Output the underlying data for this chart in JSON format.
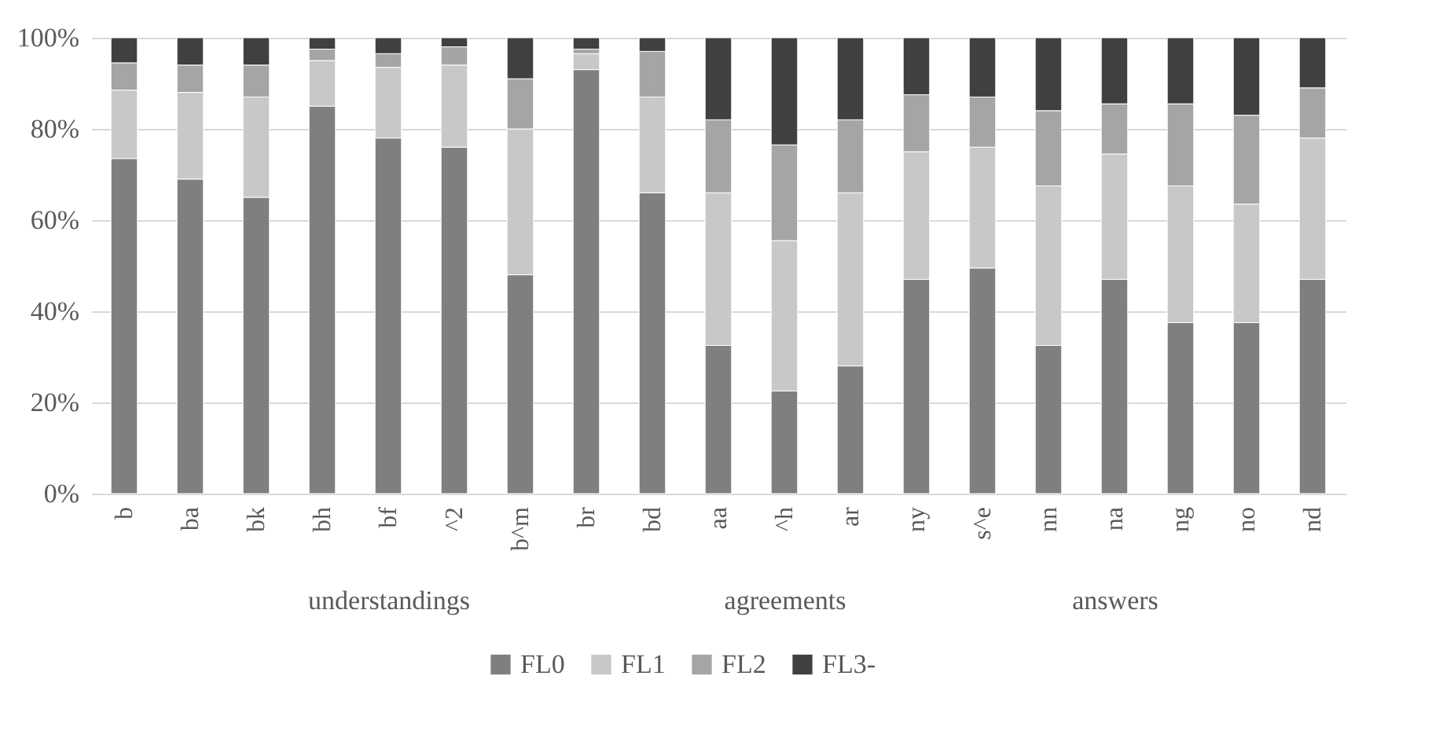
{
  "chart_data": [
    {
      "type": "bar",
      "stacked": true,
      "xlabel": "understandings",
      "categories": [
        "b",
        "ba",
        "bk",
        "bh",
        "bf",
        "^2",
        "b^m",
        "br",
        "bd"
      ],
      "ylim": [
        0,
        100
      ],
      "yticks": [
        {
          "value": 0,
          "label": "0%"
        },
        {
          "value": 20,
          "label": "20%"
        },
        {
          "value": 40,
          "label": "40%"
        },
        {
          "value": 60,
          "label": "60%"
        },
        {
          "value": 80,
          "label": "80%"
        },
        {
          "value": 100,
          "label": "100%"
        }
      ],
      "grid": "y",
      "legend": "bottom",
      "series": [
        {
          "name": "FL0",
          "color": "#7f7f7f",
          "values": [
            73.5,
            69,
            65,
            85,
            78,
            76,
            48,
            93,
            66
          ]
        },
        {
          "name": "FL1",
          "color": "#c8c8c8",
          "values": [
            15,
            19,
            22,
            10,
            15.5,
            18,
            32,
            3.5,
            21
          ]
        },
        {
          "name": "FL2",
          "color": "#a5a5a5",
          "values": [
            6,
            6,
            7,
            2.5,
            3,
            4,
            11,
            1,
            10
          ]
        },
        {
          "name": "FL3-",
          "color": "#404040",
          "values": [
            5.5,
            6,
            6,
            2.5,
            3.5,
            2,
            9,
            2.5,
            3
          ]
        }
      ]
    },
    {
      "type": "bar",
      "stacked": true,
      "xlabel": "agreements",
      "categories": [
        "aa",
        "^h",
        "ar"
      ],
      "ylim": [
        0,
        100
      ],
      "grid": "y",
      "tick_labels": "x",
      "series": [
        {
          "color": "#7f7f7f",
          "values": [
            32.5,
            22.5,
            28
          ]
        },
        {
          "color": "#c8c8c8",
          "values": [
            33.5,
            33,
            38
          ]
        },
        {
          "color": "#a5a5a5",
          "values": [
            16,
            21,
            16
          ]
        },
        {
          "color": "#404040",
          "values": [
            18,
            23.5,
            18
          ]
        }
      ]
    },
    {
      "type": "bar",
      "stacked": true,
      "xlabel": "answers",
      "categories": [
        "ny",
        "s^e",
        "nn",
        "na",
        "ng",
        "no",
        "nd"
      ],
      "ylim": [
        0,
        100
      ],
      "grid": "y",
      "tick_labels": "x",
      "series": [
        {
          "color": "#7f7f7f",
          "values": [
            47,
            49.5,
            32.5,
            47,
            37.5,
            37.5,
            47
          ]
        },
        {
          "color": "#c8c8c8",
          "values": [
            28,
            26.5,
            35,
            27.5,
            30,
            26,
            31
          ]
        },
        {
          "color": "#a5a5a5",
          "values": [
            12.5,
            11,
            16.5,
            11,
            18,
            19.5,
            11
          ]
        },
        {
          "color": "#404040",
          "values": [
            12.5,
            13,
            16,
            14.5,
            14.5,
            17,
            11
          ]
        }
      ]
    }
  ]
}
